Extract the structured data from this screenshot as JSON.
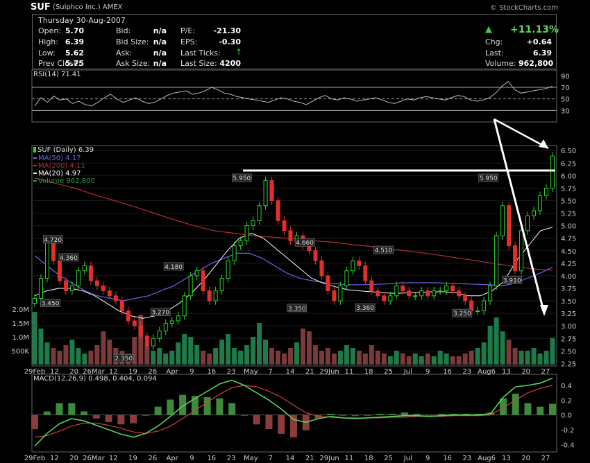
{
  "header": {
    "ticker": "SUF",
    "company": "(Sulphco Inc.) AMEX",
    "copyright": "© StockCharts.com"
  },
  "quote": {
    "date": "Thursday  30-Aug-2007",
    "open_label": "Open:",
    "open": "5.70",
    "high_label": "High:",
    "high": "6.39",
    "low_label": "Low:",
    "low": "5.62",
    "prev_close_label": "Prev Close:",
    "prev_close": "5.75",
    "bid_label": "Bid:",
    "bid": "n/a",
    "bid_size_label": "Bid Size:",
    "bid_size": "n/a",
    "ask_label": "Ask:",
    "ask": "n/a",
    "ask_size_label": "Ask Size:",
    "ask_size": "n/a",
    "pe_label": "P/E:",
    "pe": "-21.30",
    "eps_label": "EPS:",
    "eps": "-0.30",
    "last_ticks_label": "Last Ticks:",
    "last_size_label": "Last Size:",
    "last_size": "4200",
    "pct_change": "+11.13%",
    "chg_label": "Chg:",
    "chg": "+0.64",
    "last_label": "Last:",
    "last": "6.39",
    "volume_label": "Volume:",
    "volume": "962,800"
  },
  "chart_data": [
    {
      "type": "line",
      "name": "RSI panel",
      "title": "RSI(14) 71.41",
      "yticks": [
        "90",
        "70",
        "50",
        "30"
      ],
      "ylim": [
        10,
        100
      ],
      "levels": [
        70,
        50,
        30
      ],
      "series": [
        {
          "name": "RSI(14)",
          "values": [
            38,
            52,
            44,
            55,
            48,
            50,
            42,
            46,
            40,
            38,
            44,
            52,
            58,
            50,
            44,
            48,
            52,
            46,
            42,
            44,
            50,
            56,
            60,
            62,
            64,
            58,
            60,
            64,
            70,
            66,
            60,
            58,
            54,
            52,
            50,
            48,
            46,
            44,
            48,
            52,
            50,
            46,
            44,
            40,
            46,
            52,
            56,
            50,
            48,
            52,
            50,
            46,
            48,
            50,
            52,
            48,
            44,
            42,
            46,
            50,
            48,
            52,
            54,
            52,
            50,
            48,
            52,
            56,
            54,
            48,
            46,
            48,
            52,
            60,
            72,
            80,
            66,
            60,
            62,
            64,
            66,
            68,
            72
          ]
        }
      ],
      "color": "#bbb",
      "overbought_fill": "#b07ab0"
    },
    {
      "type": "candlestick",
      "name": "Price panel",
      "title": "SUF (Daily) 6.39",
      "legend": [
        "MA(50) 4.17",
        "MA(200) 4.11",
        "MA(20) 4.97",
        "Volume 962,800"
      ],
      "yticks": [
        "6.50",
        "6.25",
        "6.00",
        "5.75",
        "5.50",
        "5.25",
        "5.00",
        "4.75",
        "4.50",
        "4.25",
        "4.00",
        "3.75",
        "3.50",
        "3.25",
        "3.00",
        "2.75",
        "2.50",
        "2.25"
      ],
      "ylim": [
        2.2,
        6.6
      ],
      "volume_ticks": [
        "2.0M",
        "1.5M",
        "1.0M",
        "500K"
      ],
      "xticks": [
        "29Feb",
        "12",
        "20",
        "26Mar",
        "12",
        "19",
        "26",
        "Apr",
        "9",
        "16",
        "23",
        "May",
        "7",
        "14",
        "21",
        "29Jun",
        "11",
        "18",
        "25",
        "Jul",
        "9",
        "16",
        "23",
        "Aug6",
        "13",
        "20",
        "27"
      ],
      "annotations": [
        "4.720",
        "4.360",
        "3.450",
        "2.350",
        "4.180",
        "3.270",
        "5.950",
        "4.660",
        "3.350",
        "4.510",
        "3.360",
        "3.250",
        "5.950",
        "3.910"
      ],
      "close": [
        3.55,
        3.95,
        4.7,
        4.3,
        3.9,
        3.7,
        3.8,
        4.1,
        4.2,
        3.9,
        3.8,
        3.7,
        3.6,
        3.5,
        3.3,
        3.1,
        3.0,
        2.8,
        2.6,
        2.75,
        2.9,
        3.05,
        3.1,
        3.2,
        3.6,
        4.0,
        4.1,
        3.7,
        3.5,
        3.7,
        3.95,
        4.3,
        4.6,
        4.7,
        5.0,
        5.1,
        5.4,
        5.9,
        5.5,
        5.1,
        4.9,
        4.7,
        4.8,
        4.6,
        4.5,
        4.3,
        4.0,
        3.7,
        3.5,
        3.8,
        4.1,
        4.3,
        4.2,
        3.9,
        3.7,
        3.6,
        3.5,
        3.6,
        3.8,
        3.7,
        3.6,
        3.6,
        3.7,
        3.6,
        3.7,
        3.7,
        3.8,
        3.7,
        3.6,
        3.5,
        3.3,
        3.3,
        3.5,
        3.8,
        4.8,
        5.4,
        4.6,
        4.1,
        4.9,
        5.2,
        5.3,
        5.6,
        5.75,
        6.39
      ],
      "ma20": [
        3.6,
        3.7,
        3.75,
        3.75,
        3.7,
        3.6,
        3.45,
        3.3,
        3.2,
        3.15,
        3.2,
        3.3,
        3.45,
        3.65,
        3.9,
        4.2,
        4.5,
        4.75,
        4.85,
        4.75,
        4.55,
        4.35,
        4.15,
        3.95,
        3.85,
        3.78,
        3.72,
        3.7,
        3.68,
        3.66,
        3.65,
        3.66,
        3.67,
        3.68,
        3.68,
        3.66,
        3.6,
        3.6,
        3.7,
        3.9,
        4.3,
        4.6,
        4.9,
        4.97
      ],
      "ma50": [
        4.4,
        4.2,
        4.0,
        3.85,
        3.7,
        3.6,
        3.55,
        3.5,
        3.55,
        3.6,
        3.7,
        3.8,
        3.95,
        4.1,
        4.25,
        4.35,
        4.45,
        4.45,
        4.35,
        4.2,
        4.05,
        3.95,
        3.9,
        3.86,
        3.84,
        3.82,
        3.82,
        3.83,
        3.84,
        3.86,
        3.86,
        3.86,
        3.86,
        3.85,
        3.84,
        3.83,
        3.82,
        3.8,
        3.85,
        3.95,
        4.05,
        4.17
      ],
      "ma200": [
        5.95,
        5.85,
        5.75,
        5.62,
        5.5,
        5.38,
        5.25,
        5.12,
        5.0,
        4.9,
        4.85,
        4.8,
        4.77,
        4.74,
        4.7,
        4.67,
        4.62,
        4.58,
        4.53,
        4.48,
        4.43,
        4.37,
        4.31,
        4.25,
        4.19,
        4.14,
        4.11
      ],
      "volume_M": [
        1.9,
        1.3,
        0.8,
        0.6,
        0.5,
        0.7,
        0.9,
        0.6,
        0.4,
        0.5,
        0.7,
        1.2,
        0.9,
        0.6,
        0.5,
        0.4,
        1.0,
        1.8,
        0.7,
        0.5,
        0.6,
        0.4,
        0.5,
        0.8,
        1.1,
        1.0,
        0.7,
        0.5,
        0.4,
        0.6,
        0.9,
        1.1,
        0.6,
        0.5,
        0.7,
        1.0,
        1.5,
        0.9,
        0.6,
        0.5,
        0.4,
        0.6,
        0.8,
        1.3,
        1.2,
        0.7,
        0.5,
        0.6,
        0.4,
        0.5,
        0.7,
        0.6,
        0.5,
        0.4,
        0.7,
        0.5,
        0.4,
        0.3,
        0.5,
        0.4,
        0.3,
        0.4,
        0.3,
        0.4,
        0.3,
        0.5,
        0.4,
        0.3,
        0.3,
        0.4,
        0.5,
        0.6,
        0.8,
        1.4,
        1.7,
        1.2,
        0.9,
        0.6,
        0.5,
        0.5,
        0.6,
        0.4,
        0.5,
        0.96
      ]
    },
    {
      "type": "line",
      "name": "MACD panel",
      "title": "MACD(12,26,9) 0.498, 0.404, 0.094",
      "yticks": [
        "0.4",
        "0.2",
        "0.0",
        "-0.2",
        "-0.4"
      ],
      "ylim": [
        -0.5,
        0.55
      ],
      "xticks": [
        "29Feb",
        "12",
        "20",
        "26Mar",
        "12",
        "19",
        "26",
        "Apr",
        "9",
        "16",
        "23",
        "May",
        "7",
        "14",
        "21",
        "29Jun",
        "11",
        "18",
        "25",
        "Jul",
        "9",
        "16",
        "23",
        "Aug6",
        "13",
        "20",
        "27"
      ],
      "series": [
        {
          "name": "MACD",
          "values": [
            -0.42,
            -0.25,
            -0.12,
            -0.05,
            -0.08,
            -0.14,
            -0.2,
            -0.26,
            -0.3,
            -0.25,
            -0.15,
            -0.02,
            0.12,
            0.22,
            0.32,
            0.42,
            0.47,
            0.4,
            0.3,
            0.2,
            0.08,
            -0.06,
            -0.1,
            -0.05,
            -0.02,
            -0.04,
            -0.05,
            -0.04,
            -0.03,
            -0.02,
            -0.01,
            -0.01,
            -0.02,
            -0.01,
            0.0,
            0.0,
            0.0,
            0.02,
            0.24,
            0.38,
            0.4,
            0.43,
            0.498
          ],
          "color": "#56d356"
        },
        {
          "name": "Signal",
          "values": [
            -0.3,
            -0.28,
            -0.22,
            -0.15,
            -0.11,
            -0.11,
            -0.14,
            -0.18,
            -0.23,
            -0.25,
            -0.22,
            -0.15,
            -0.05,
            0.06,
            0.17,
            0.28,
            0.37,
            0.4,
            0.38,
            0.32,
            0.24,
            0.13,
            0.03,
            -0.02,
            -0.03,
            -0.04,
            -0.04,
            -0.04,
            -0.04,
            -0.03,
            -0.03,
            -0.02,
            -0.02,
            -0.02,
            -0.01,
            -0.01,
            -0.01,
            0.0,
            0.1,
            0.2,
            0.3,
            0.36,
            0.404
          ],
          "color": "#d04040"
        }
      ]
    }
  ],
  "colors": {
    "up": "#2bd42b",
    "down": "#e0302b",
    "ma20": "#ffffff",
    "ma50": "#6666e6",
    "ma200": "#b03030",
    "vol_up": "#1f7a4a",
    "vol_down": "#7a3a3a",
    "arrow": "#ffffff",
    "resistance": "#ffffff"
  },
  "icons": {
    "up_arrow": "green-up-triangle",
    "last_tick": "green-up-arrow"
  }
}
